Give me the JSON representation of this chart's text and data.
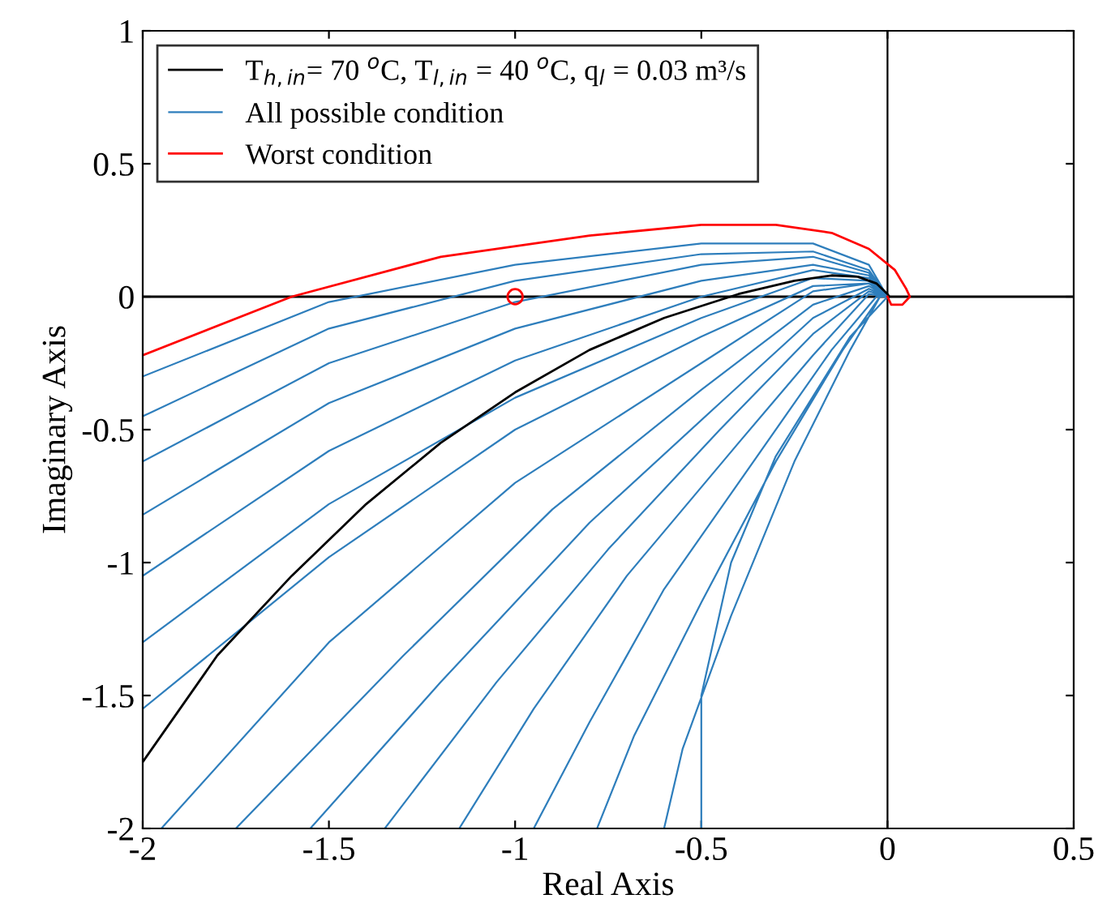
{
  "chart_data": {
    "type": "line",
    "xlabel": "Real Axis",
    "ylabel": "Imaginary Axis",
    "xlim": [
      -2,
      0.5
    ],
    "ylim": [
      -2,
      1
    ],
    "xticks": [
      -2,
      -1.5,
      -1,
      -0.5,
      0,
      0.5
    ],
    "yticks": [
      -2,
      -1.5,
      -1,
      -0.5,
      0,
      0.5,
      1
    ],
    "grid": false,
    "legend": "top left",
    "line_style": "solid",
    "marker": "none",
    "ref_lines": [
      {
        "axis": "x",
        "value": 0,
        "color": "#000000"
      },
      {
        "axis": "y",
        "value": 0,
        "color": "#000000"
      }
    ],
    "series": [
      {
        "name": "All possible condition",
        "color": "#2e7ebc",
        "x": [
          -2,
          -1.5,
          -1,
          -0.5,
          -0.2,
          -0.05,
          0,
          null,
          -2,
          -1.5,
          -1,
          -0.5,
          -0.2,
          -0.05,
          0,
          null,
          -2,
          -1.5,
          -1,
          -0.5,
          -0.2,
          -0.05,
          0,
          null,
          -2,
          -1.5,
          -1,
          -0.5,
          -0.2,
          -0.05,
          0,
          null,
          -2,
          -1.5,
          -1,
          -0.5,
          -0.2,
          -0.05,
          0,
          null,
          -2,
          -1.5,
          -1,
          -0.5,
          -0.2,
          -0.05,
          0,
          null,
          -2,
          -1.5,
          -1,
          -0.5,
          -0.2,
          -0.05,
          0,
          null,
          -1.95,
          -1.5,
          -1,
          -0.5,
          -0.2,
          -0.05,
          0,
          null,
          -1.75,
          -1.3,
          -0.9,
          -0.5,
          -0.2,
          -0.05,
          0,
          null,
          -1.55,
          -1.2,
          -0.8,
          -0.45,
          -0.2,
          -0.05,
          0,
          null,
          -1.35,
          -1.05,
          -0.75,
          -0.45,
          -0.2,
          -0.05,
          0,
          null,
          -1.15,
          -0.95,
          -0.7,
          -0.4,
          -0.2,
          -0.05,
          0,
          null,
          -0.95,
          -0.8,
          -0.6,
          -0.35,
          -0.15,
          -0.03,
          0,
          null,
          -0.78,
          -0.68,
          -0.5,
          -0.3,
          -0.12,
          -0.02,
          0,
          null,
          -0.6,
          -0.55,
          -0.42,
          -0.25,
          -0.1,
          -0.02,
          0,
          null,
          -0.5,
          -0.5,
          -0.42,
          -0.3,
          -0.1,
          0
        ],
        "values": [
          -0.3,
          -0.02,
          0.12,
          0.2,
          0.2,
          0.12,
          0,
          null,
          -0.45,
          -0.12,
          0.06,
          0.16,
          0.17,
          0.1,
          0,
          null,
          -0.62,
          -0.25,
          -0.02,
          0.12,
          0.15,
          0.09,
          0,
          null,
          -0.82,
          -0.4,
          -0.12,
          0.06,
          0.12,
          0.08,
          0,
          null,
          -1.05,
          -0.58,
          -0.24,
          0,
          0.1,
          0.07,
          0,
          null,
          -1.3,
          -0.78,
          -0.38,
          -0.08,
          0.07,
          0.06,
          0,
          null,
          -1.55,
          -0.98,
          -0.5,
          -0.15,
          0.04,
          0.05,
          0,
          null,
          -2,
          -1.3,
          -0.7,
          -0.25,
          0.02,
          0.05,
          0,
          null,
          -2,
          -1.35,
          -0.8,
          -0.35,
          -0.03,
          0.04,
          0,
          null,
          -2,
          -1.45,
          -0.85,
          -0.4,
          -0.08,
          0.03,
          0,
          null,
          -2,
          -1.45,
          -0.95,
          -0.5,
          -0.14,
          0.02,
          0,
          null,
          -2,
          -1.55,
          -1.05,
          -0.55,
          -0.22,
          0.01,
          0,
          null,
          -2,
          -1.6,
          -1.1,
          -0.6,
          -0.2,
          0,
          0,
          null,
          -2,
          -1.65,
          -1.15,
          -0.62,
          -0.2,
          0,
          0,
          null,
          -2,
          -1.7,
          -1.2,
          -0.62,
          -0.2,
          0,
          0,
          null,
          -2,
          -1.5,
          -1,
          -0.6,
          -0.15,
          0
        ]
      },
      {
        "name": "T$_{h,in}$= 70 $^{o}$C, T$_{l,in}$ = 40 $^{o}$C, q$_{l}$ = 0.03 m³/s",
        "color": "#000000",
        "x": [
          -2,
          -1.8,
          -1.6,
          -1.4,
          -1.2,
          -1,
          -0.8,
          -0.6,
          -0.4,
          -0.25,
          -0.15,
          -0.08,
          -0.03,
          0,
          0.005
        ],
        "values": [
          -1.75,
          -1.35,
          -1.05,
          -0.78,
          -0.55,
          -0.36,
          -0.2,
          -0.08,
          0.01,
          0.06,
          0.08,
          0.075,
          0.05,
          0.01,
          0
        ]
      },
      {
        "name": "Worst condition",
        "color": "#ff0000",
        "x": [
          -2,
          -1.6,
          -1.2,
          -0.8,
          -0.5,
          -0.3,
          -0.15,
          -0.05,
          0.02,
          0.05,
          0.06,
          0.04,
          0.01,
          0
        ],
        "values": [
          -0.22,
          0,
          0.15,
          0.23,
          0.27,
          0.27,
          0.24,
          0.18,
          0.1,
          0.03,
          0,
          -0.03,
          -0.03,
          0
        ]
      },
      {
        "type": "scatter",
        "marker": "circle",
        "color": "#ff0000",
        "x": [
          -1
        ],
        "values": [
          0
        ]
      }
    ]
  }
}
